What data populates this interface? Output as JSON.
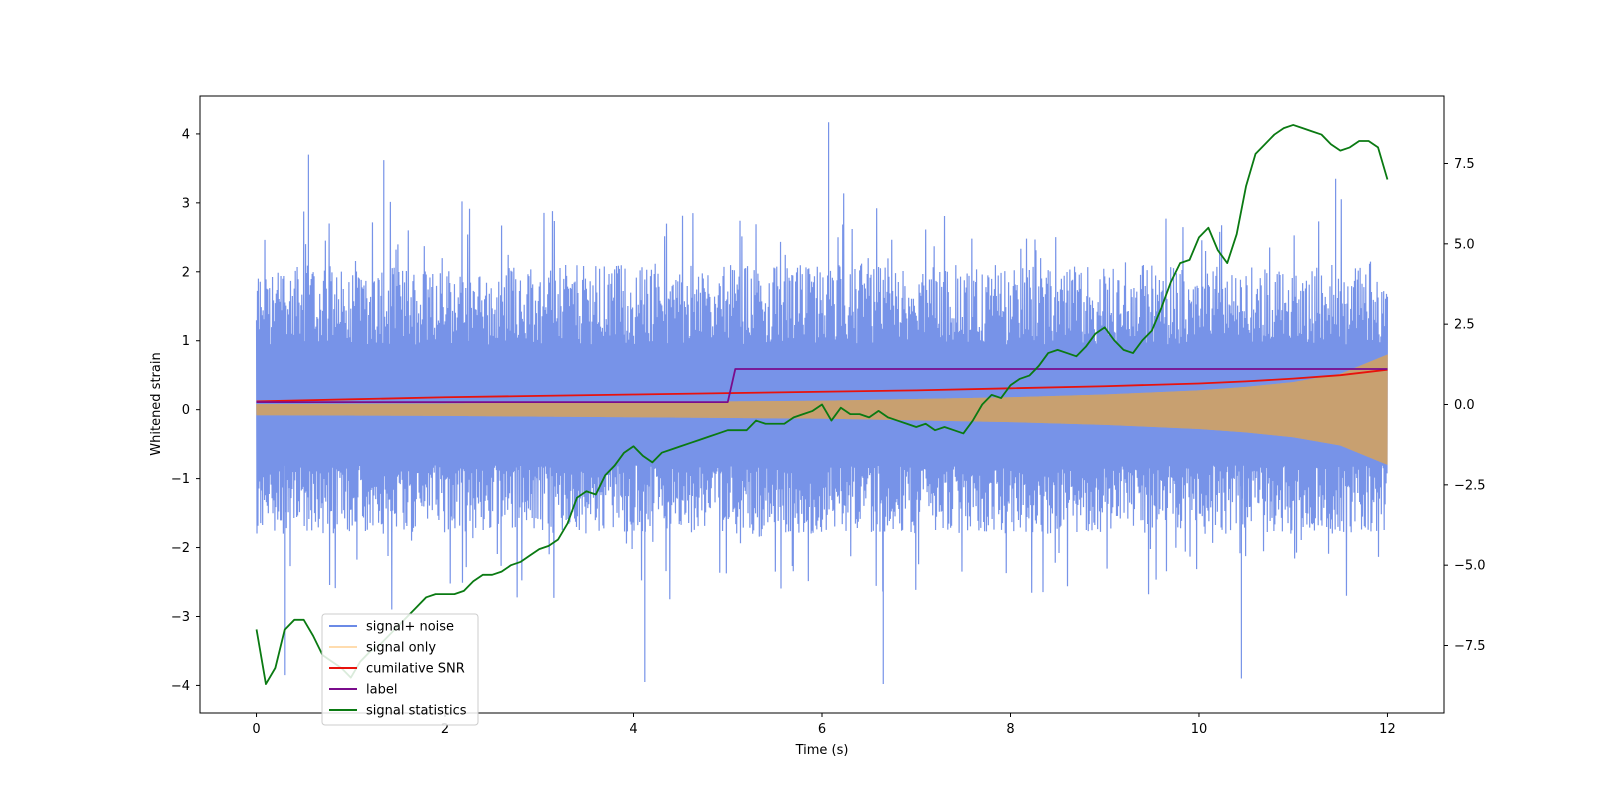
{
  "chart_data": {
    "type": "line",
    "title": "",
    "xlabel": "Time (s)",
    "ylabel": "Whitened strain",
    "y2label": "",
    "xlim": [
      -0.6,
      12.6
    ],
    "ylim": [
      -4.4,
      4.55
    ],
    "y2lim": [
      -9.6,
      9.6
    ],
    "x_ticks": [
      0,
      2,
      4,
      6,
      8,
      10,
      12
    ],
    "x_tick_labels": [
      "0",
      "2",
      "4",
      "6",
      "8",
      "10",
      "12"
    ],
    "y_ticks": [
      -4,
      -3,
      -2,
      -1,
      0,
      1,
      2,
      3,
      4
    ],
    "y_tick_labels": [
      "−4",
      "−3",
      "−2",
      "−1",
      "0",
      "1",
      "2",
      "3",
      "4"
    ],
    "y2_ticks": [
      -7.5,
      -5,
      -2.5,
      0,
      2.5,
      5,
      7.5
    ],
    "y2_tick_labels": [
      "−7.5",
      "−5.0",
      "−2.5",
      "0.0",
      "2.5",
      "5.0",
      "7.5"
    ],
    "grid": false,
    "legend_position": "lower-left",
    "series": [
      {
        "name": "signal+ noise",
        "color": "#6b8ae6",
        "axis": "left",
        "kind": "noise-band",
        "x_range": [
          0,
          12
        ],
        "typical_lower": -1.8,
        "typical_upper": 2.1,
        "notable_peaks": [
          {
            "x": 6.07,
            "y": 4.17
          },
          {
            "x": 0.55,
            "y": 3.7
          },
          {
            "x": 1.35,
            "y": 3.62
          },
          {
            "x": 11.45,
            "y": 3.35
          }
        ],
        "notable_troughs": [
          {
            "x": 4.12,
            "y": -3.95
          },
          {
            "x": 6.65,
            "y": -3.98
          },
          {
            "x": 10.45,
            "y": -3.9
          },
          {
            "x": 0.3,
            "y": -3.85
          }
        ]
      },
      {
        "name": "signal only",
        "color": "#ffb04d",
        "axis": "left",
        "kind": "envelope",
        "x": [
          0,
          2,
          4,
          6,
          8,
          9,
          10,
          10.5,
          11,
          11.5,
          12
        ],
        "upper": [
          0.08,
          0.09,
          0.11,
          0.13,
          0.18,
          0.22,
          0.28,
          0.33,
          0.4,
          0.52,
          0.8
        ],
        "lower": [
          -0.08,
          -0.09,
          -0.11,
          -0.13,
          -0.18,
          -0.22,
          -0.28,
          -0.33,
          -0.4,
          -0.52,
          -0.8
        ]
      },
      {
        "name": "cumilative SNR",
        "color": "#e8120c",
        "axis": "left",
        "x": [
          0,
          1,
          2,
          3,
          4,
          5,
          6,
          7,
          8,
          9,
          10,
          10.5,
          11,
          11.5,
          12
        ],
        "values": [
          0.12,
          0.15,
          0.18,
          0.2,
          0.22,
          0.24,
          0.26,
          0.28,
          0.31,
          0.34,
          0.38,
          0.41,
          0.45,
          0.5,
          0.58
        ]
      },
      {
        "name": "label",
        "color": "#7a0c8c",
        "axis": "left",
        "x": [
          0,
          5.0,
          5.08,
          12
        ],
        "values": [
          0.11,
          0.11,
          0.59,
          0.59
        ]
      },
      {
        "name": "signal statistics",
        "color": "#0a7a12",
        "axis": "right",
        "x": [
          0,
          0.1,
          0.2,
          0.3,
          0.4,
          0.5,
          0.6,
          0.7,
          0.8,
          0.9,
          1.0,
          1.1,
          1.2,
          1.3,
          1.4,
          1.5,
          1.6,
          1.7,
          1.8,
          1.9,
          2.0,
          2.1,
          2.2,
          2.3,
          2.4,
          2.5,
          2.6,
          2.7,
          2.8,
          2.9,
          3.0,
          3.1,
          3.2,
          3.3,
          3.4,
          3.5,
          3.6,
          3.7,
          3.8,
          3.9,
          4.0,
          4.1,
          4.2,
          4.3,
          4.4,
          4.5,
          4.6,
          4.7,
          4.8,
          4.9,
          5.0,
          5.1,
          5.2,
          5.3,
          5.4,
          5.5,
          5.6,
          5.7,
          5.8,
          5.9,
          6.0,
          6.1,
          6.2,
          6.3,
          6.4,
          6.5,
          6.6,
          6.7,
          6.8,
          6.9,
          7.0,
          7.1,
          7.2,
          7.3,
          7.4,
          7.5,
          7.6,
          7.7,
          7.8,
          7.9,
          8.0,
          8.1,
          8.2,
          8.3,
          8.4,
          8.5,
          8.6,
          8.7,
          8.8,
          8.9,
          9.0,
          9.1,
          9.2,
          9.3,
          9.4,
          9.5,
          9.6,
          9.7,
          9.8,
          9.9,
          10.0,
          10.1,
          10.2,
          10.3,
          10.4,
          10.5,
          10.6,
          10.7,
          10.8,
          10.9,
          11.0,
          11.1,
          11.2,
          11.3,
          11.4,
          11.5,
          11.6,
          11.7,
          11.8,
          11.9,
          12.0
        ],
        "values": [
          -7.0,
          -8.7,
          -8.2,
          -7.0,
          -6.7,
          -6.7,
          -7.2,
          -7.8,
          -8.0,
          -8.2,
          -8.5,
          -8.0,
          -7.7,
          -7.5,
          -7.2,
          -6.9,
          -6.6,
          -6.3,
          -6.0,
          -5.9,
          -5.9,
          -5.9,
          -5.8,
          -5.5,
          -5.3,
          -5.3,
          -5.2,
          -5.0,
          -4.9,
          -4.7,
          -4.5,
          -4.4,
          -4.2,
          -3.7,
          -2.9,
          -2.7,
          -2.8,
          -2.2,
          -1.9,
          -1.5,
          -1.3,
          -1.6,
          -1.8,
          -1.5,
          -1.4,
          -1.3,
          -1.2,
          -1.1,
          -1.0,
          -0.9,
          -0.8,
          -0.8,
          -0.8,
          -0.5,
          -0.6,
          -0.6,
          -0.6,
          -0.4,
          -0.3,
          -0.2,
          0.0,
          -0.5,
          -0.1,
          -0.3,
          -0.3,
          -0.4,
          -0.2,
          -0.4,
          -0.5,
          -0.6,
          -0.7,
          -0.6,
          -0.8,
          -0.7,
          -0.8,
          -0.9,
          -0.5,
          0.0,
          0.3,
          0.2,
          0.6,
          0.8,
          0.9,
          1.2,
          1.6,
          1.7,
          1.6,
          1.5,
          1.8,
          2.2,
          2.4,
          2.0,
          1.7,
          1.6,
          2.0,
          2.3,
          3.0,
          3.8,
          4.4,
          4.5,
          5.2,
          5.5,
          4.8,
          4.4,
          5.3,
          6.8,
          7.8,
          8.1,
          8.4,
          8.6,
          8.7,
          8.6,
          8.5,
          8.4,
          8.1,
          7.9,
          8.0,
          8.2,
          8.2,
          8.0,
          7.0
        ]
      }
    ]
  }
}
